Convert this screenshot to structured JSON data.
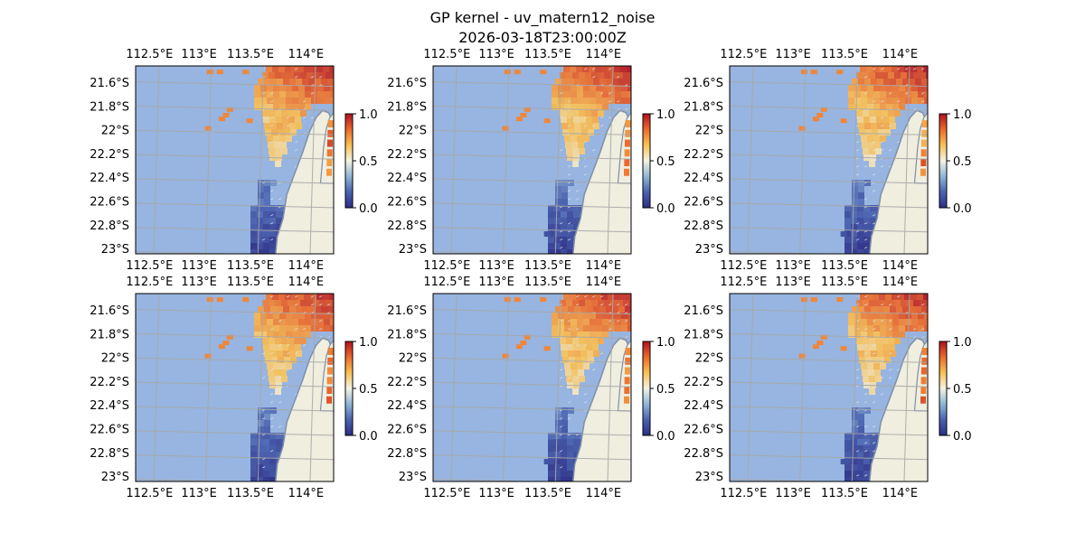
{
  "figure": {
    "title": "GP kernel - uv_matern12_noise",
    "subtitle": "2026-03-18T23:00:00Z"
  },
  "colors": {
    "ocean": "#97b5e0",
    "land": "#efeedf",
    "coast": "#7f8fa8",
    "gridline": "#a8a8a8",
    "cmap": [
      "#2b2e86",
      "#4a63b0",
      "#8eb6d6",
      "#f3f2e2",
      "#f9c154",
      "#ec6a2c",
      "#b2111f"
    ]
  },
  "chart_data": [
    {
      "type": "heatmap",
      "panel": "top-left",
      "x_ticks": [
        "112.5°E",
        "113°E",
        "113.5°E",
        "114°E"
      ],
      "y_ticks": [
        "21.6°S",
        "21.8°S",
        "22°S",
        "22.2°S",
        "22.4°S",
        "22.6°S",
        "22.8°S",
        "23°S"
      ],
      "xlim": [
        112.3,
        114.2
      ],
      "ylim": [
        -23.0,
        -21.45
      ],
      "colorbar": {
        "ticks": [
          "1.0",
          "0.5",
          "0.0"
        ],
        "range": [
          0,
          1
        ]
      },
      "grid": true
    },
    {
      "type": "heatmap",
      "panel": "top-middle",
      "x_ticks": [
        "112.5°E",
        "113°E",
        "113.5°E",
        "114°E"
      ],
      "y_ticks": [
        "21.6°S",
        "21.8°S",
        "22°S",
        "22.2°S",
        "22.4°S",
        "22.6°S",
        "22.8°S",
        "23°S"
      ],
      "xlim": [
        112.3,
        114.2
      ],
      "ylim": [
        -23.0,
        -21.45
      ],
      "colorbar": {
        "ticks": [
          "1.0",
          "0.5",
          "0.0"
        ],
        "range": [
          0,
          1
        ]
      },
      "grid": true
    },
    {
      "type": "heatmap",
      "panel": "top-right",
      "x_ticks": [
        "112.5°E",
        "113°E",
        "113.5°E",
        "114°E"
      ],
      "y_ticks": [
        "21.6°S",
        "21.8°S",
        "22°S",
        "22.2°S",
        "22.4°S",
        "22.6°S",
        "22.8°S",
        "23°S"
      ],
      "xlim": [
        112.3,
        114.2
      ],
      "ylim": [
        -23.0,
        -21.45
      ],
      "colorbar": {
        "ticks": [
          "1.0",
          "0.5",
          "0.0"
        ],
        "range": [
          0,
          1
        ]
      },
      "grid": true
    },
    {
      "type": "heatmap",
      "panel": "bottom-left",
      "x_ticks": [
        "112.5°E",
        "113°E",
        "113.5°E",
        "114°E"
      ],
      "y_ticks": [
        "21.6°S",
        "21.8°S",
        "22°S",
        "22.2°S",
        "22.4°S",
        "22.6°S",
        "22.8°S",
        "23°S"
      ],
      "xlim": [
        112.3,
        114.2
      ],
      "ylim": [
        -23.0,
        -21.45
      ],
      "colorbar": {
        "ticks": [
          "1.0",
          "0.5",
          "0.0"
        ],
        "range": [
          0,
          1
        ]
      },
      "grid": true
    },
    {
      "type": "heatmap",
      "panel": "bottom-middle",
      "x_ticks": [
        "112.5°E",
        "113°E",
        "113.5°E",
        "114°E"
      ],
      "y_ticks": [
        "21.6°S",
        "21.8°S",
        "22°S",
        "22.2°S",
        "22.4°S",
        "22.6°S",
        "22.8°S",
        "23°S"
      ],
      "xlim": [
        112.3,
        114.2
      ],
      "ylim": [
        -23.0,
        -21.45
      ],
      "colorbar": {
        "ticks": [
          "1.0",
          "0.5",
          "0.0"
        ],
        "range": [
          0,
          1
        ]
      },
      "grid": true
    },
    {
      "type": "heatmap",
      "panel": "bottom-right",
      "x_ticks": [
        "112.5°E",
        "113°E",
        "113.5°E",
        "114°E"
      ],
      "y_ticks": [
        "21.6°S",
        "21.8°S",
        "22°S",
        "22.2°S",
        "22.4°S",
        "22.6°S",
        "22.8°S",
        "23°S"
      ],
      "xlim": [
        112.3,
        114.2
      ],
      "ylim": [
        -23.0,
        -21.45
      ],
      "colorbar": {
        "ticks": [
          "1.0",
          "0.5",
          "0.0"
        ],
        "range": [
          0,
          1
        ]
      },
      "grid": true
    }
  ]
}
